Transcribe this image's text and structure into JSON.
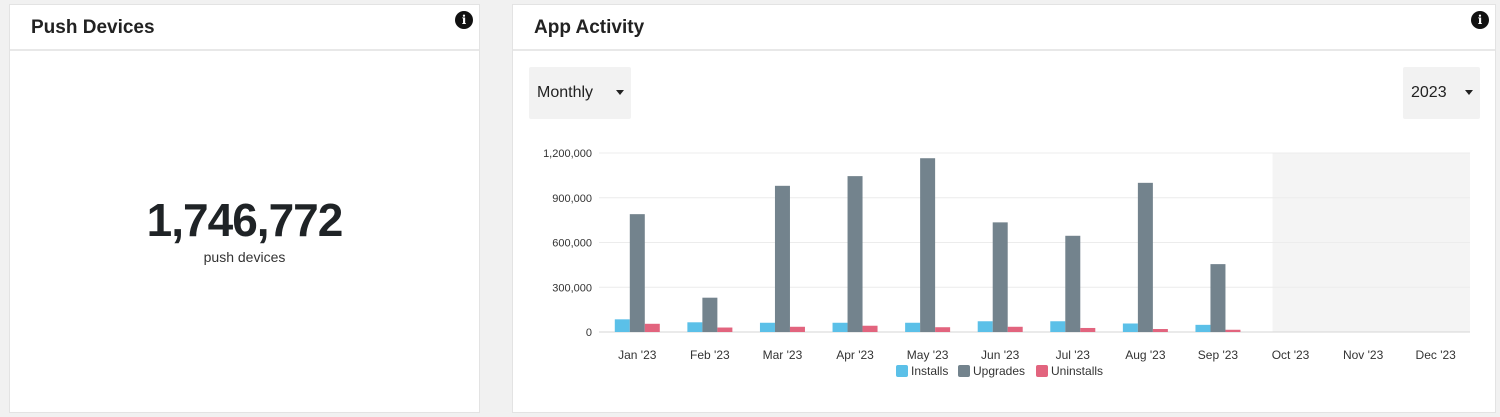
{
  "push_card": {
    "title": "Push Devices",
    "value": "1,746,772",
    "caption": "push devices",
    "info_icon": "info-icon"
  },
  "activity_card": {
    "title": "App Activity",
    "info_icon": "info-icon",
    "period_select": {
      "value": "Monthly"
    },
    "year_select": {
      "value": "2023"
    }
  },
  "colors": {
    "installs": "#5bc0e8",
    "upgrades": "#73838d",
    "uninstalls": "#e2647e",
    "future_shade": "#f4f4f4"
  },
  "chart_data": {
    "type": "bar",
    "categories": [
      "Jan '23",
      "Feb '23",
      "Mar '23",
      "Apr '23",
      "May '23",
      "Jun '23",
      "Jul '23",
      "Aug '23",
      "Sep '23",
      "Oct '23",
      "Nov '23",
      "Dec '23"
    ],
    "series": [
      {
        "name": "Installs",
        "values": [
          85000,
          65000,
          62000,
          62000,
          62000,
          72000,
          72000,
          57000,
          48000,
          0,
          0,
          0
        ]
      },
      {
        "name": "Upgrades",
        "values": [
          790000,
          230000,
          980000,
          1045000,
          1165000,
          735000,
          645000,
          1000000,
          455000,
          0,
          0,
          0
        ]
      },
      {
        "name": "Uninstalls",
        "values": [
          55000,
          30000,
          35000,
          42000,
          32000,
          35000,
          27000,
          20000,
          15000,
          0,
          0,
          0
        ]
      }
    ],
    "yticks": [
      "0",
      "300,000",
      "600,000",
      "900,000",
      "1,200,000"
    ],
    "ytick_values": [
      0,
      300000,
      600000,
      900000,
      1200000
    ],
    "ylim": [
      0,
      1200000
    ],
    "future_from": "Oct '23",
    "legend_position": "bottom-center",
    "grid": true
  }
}
